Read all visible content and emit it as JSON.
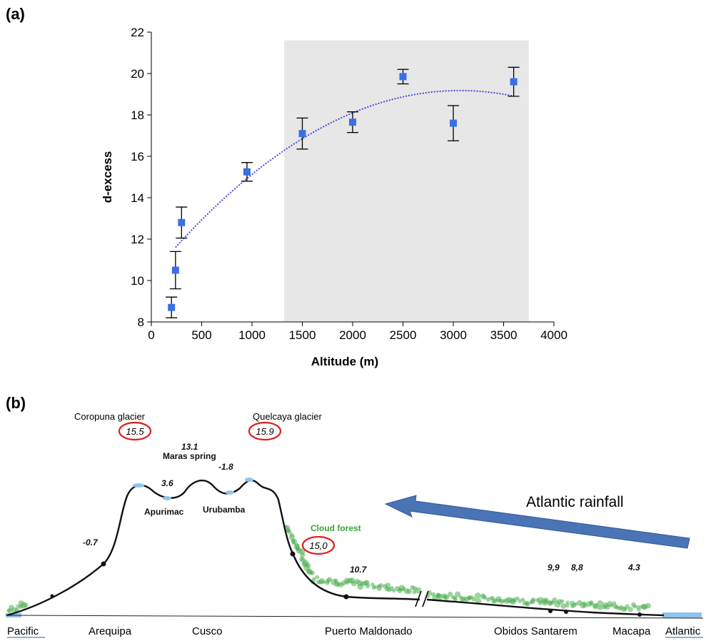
{
  "panel_a_label": "(a)",
  "panel_b_label": "(b)",
  "chart_data": {
    "type": "scatter",
    "xlabel": "Altitude (m)",
    "ylabel": "d-excess",
    "xlim": [
      0,
      4000
    ],
    "ylim": [
      8,
      22
    ],
    "xticks": [
      "0",
      "500",
      "1000",
      "1500",
      "2000",
      "2500",
      "3000",
      "3500",
      "4000"
    ],
    "yticks": [
      "8",
      "10",
      "12",
      "14",
      "16",
      "18",
      "20",
      "22"
    ],
    "shaded_region_x": [
      1320,
      3750
    ],
    "points": [
      {
        "x": 200,
        "y": 8.7,
        "err": 0.5
      },
      {
        "x": 240,
        "y": 10.5,
        "err": 0.9
      },
      {
        "x": 300,
        "y": 12.8,
        "err": 0.75
      },
      {
        "x": 950,
        "y": 15.25,
        "err": 0.45
      },
      {
        "x": 1500,
        "y": 17.1,
        "err": 0.75
      },
      {
        "x": 2000,
        "y": 17.65,
        "err": 0.5
      },
      {
        "x": 2500,
        "y": 19.85,
        "err": 0.35
      },
      {
        "x": 3000,
        "y": 17.6,
        "err": 0.85
      },
      {
        "x": 3600,
        "y": 19.6,
        "err": 0.7
      }
    ],
    "trend": {
      "style": "dotted",
      "x_range": [
        240,
        3600
      ]
    },
    "marker_color": "#3b6fe6",
    "trend_color": "#4a4ad8",
    "shade_color": "#e7e7e7"
  },
  "profile": {
    "labels": {
      "coropuna": "Coropuna glacier",
      "quelcaya": "Quelcaya glacier",
      "maras": "Maras spring",
      "apurimac": "Apurimac",
      "urubamba": "Urubamba",
      "cloud_forest": "Cloud forest",
      "atlantic_rainfall": "Atlantic rainfall"
    },
    "values": {
      "coropuna": "15.5",
      "quelcaya": "15.9",
      "maras": "13.1",
      "minus18": "-1.8",
      "v36": "3.6",
      "minus07": "-0.7",
      "cloud": "15,0",
      "v107": "10.7",
      "v99": "9,9",
      "v88": "8,8",
      "v43": "4.3"
    },
    "places": [
      "Pacific",
      "Arequipa",
      "Cusco",
      "Puerto Maldonado",
      "Obidos Santarem",
      "Macapa",
      "Atlantic"
    ],
    "arrow_color": "#4a74b5",
    "circle_color": "#e02020",
    "forest_color": "#4caf50",
    "water_color": "#8ec4ee"
  }
}
